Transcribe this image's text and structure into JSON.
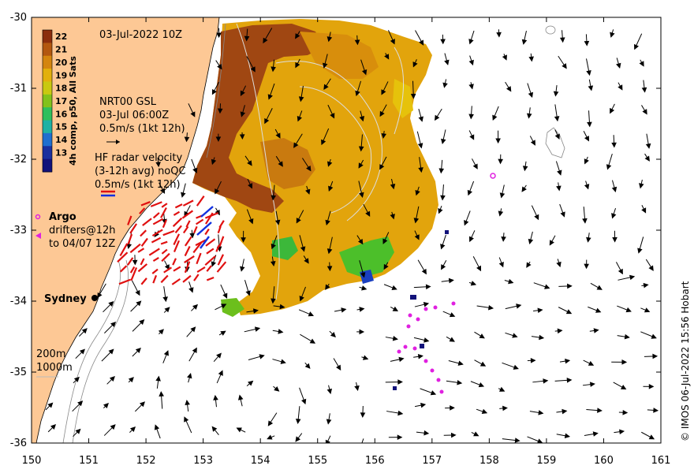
{
  "title": "03-Jul-2022 10Z",
  "colorbar": {
    "label": "4h comp, p50, All Sats",
    "ticks": [
      "22",
      "21",
      "20",
      "19",
      "18",
      "17",
      "16",
      "15",
      "14",
      "13"
    ],
    "colors": [
      "#8b2d0c",
      "#b3570f",
      "#d4850e",
      "#e2b00b",
      "#c9c910",
      "#82c21b",
      "#2fbf5c",
      "#1fb1a4",
      "#1f6fcf",
      "#1a2f9e",
      "#12127a"
    ]
  },
  "gsl_legend": {
    "line1": "NRT00 GSL",
    "line2": "03-Jul 06:00Z",
    "line3": "0.5m/s (1kt 12h)"
  },
  "hf_legend": {
    "line1": "HF radar velocity",
    "line2": "(3-12h avg) noQC",
    "line3": "0.5m/s (1kt 12h)"
  },
  "argo_legend": {
    "argo": "Argo",
    "drifters1": "drifters@12h",
    "drifters2": "to 04/07 12Z"
  },
  "place": "Sydney",
  "depth_legend": {
    "d1": "200m",
    "d2": "1000m"
  },
  "credit": "© IMOS 06-Jul-2022 15:56 Hobart",
  "x_ticks": [
    "150",
    "151",
    "152",
    "153",
    "154",
    "155",
    "156",
    "157",
    "158",
    "159",
    "160",
    "161"
  ],
  "y_ticks": [
    "-30",
    "-31",
    "-32",
    "-33",
    "-34",
    "-35",
    "-36"
  ],
  "colors": {
    "land": "#fdc895",
    "ocean": "#ffffff",
    "hf_red": "#e01010",
    "hf_blue": "#1030e0",
    "drifter": "#e020e0"
  }
}
